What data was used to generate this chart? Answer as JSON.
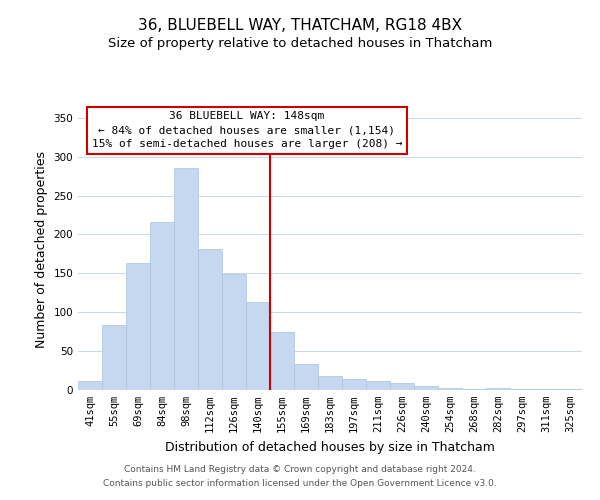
{
  "title": "36, BLUEBELL WAY, THATCHAM, RG18 4BX",
  "subtitle": "Size of property relative to detached houses in Thatcham",
  "xlabel": "Distribution of detached houses by size in Thatcham",
  "ylabel": "Number of detached properties",
  "bar_labels": [
    "41sqm",
    "55sqm",
    "69sqm",
    "84sqm",
    "98sqm",
    "112sqm",
    "126sqm",
    "140sqm",
    "155sqm",
    "169sqm",
    "183sqm",
    "197sqm",
    "211sqm",
    "226sqm",
    "240sqm",
    "254sqm",
    "268sqm",
    "282sqm",
    "297sqm",
    "311sqm",
    "325sqm"
  ],
  "bar_values": [
    11,
    83,
    163,
    216,
    286,
    181,
    149,
    113,
    74,
    34,
    18,
    14,
    12,
    9,
    5,
    3,
    1,
    2,
    1,
    1,
    1
  ],
  "bar_color": "#c5d8ef",
  "bar_edge_color": "#a8c4e0",
  "vline_x": 7.5,
  "vline_color": "#cc0000",
  "annotation_title": "36 BLUEBELL WAY: 148sqm",
  "annotation_line1": "← 84% of detached houses are smaller (1,154)",
  "annotation_line2": "15% of semi-detached houses are larger (208) →",
  "annotation_box_color": "#ffffff",
  "annotation_box_edge": "#cc0000",
  "ylim": [
    0,
    360
  ],
  "yticks": [
    0,
    50,
    100,
    150,
    200,
    250,
    300,
    350
  ],
  "footer_line1": "Contains HM Land Registry data © Crown copyright and database right 2024.",
  "footer_line2": "Contains public sector information licensed under the Open Government Licence v3.0.",
  "background_color": "#ffffff",
  "grid_color": "#c8d8e8",
  "title_fontsize": 11,
  "subtitle_fontsize": 9.5,
  "axis_label_fontsize": 9,
  "tick_fontsize": 7.5,
  "footer_fontsize": 6.5,
  "annotation_fontsize": 8
}
